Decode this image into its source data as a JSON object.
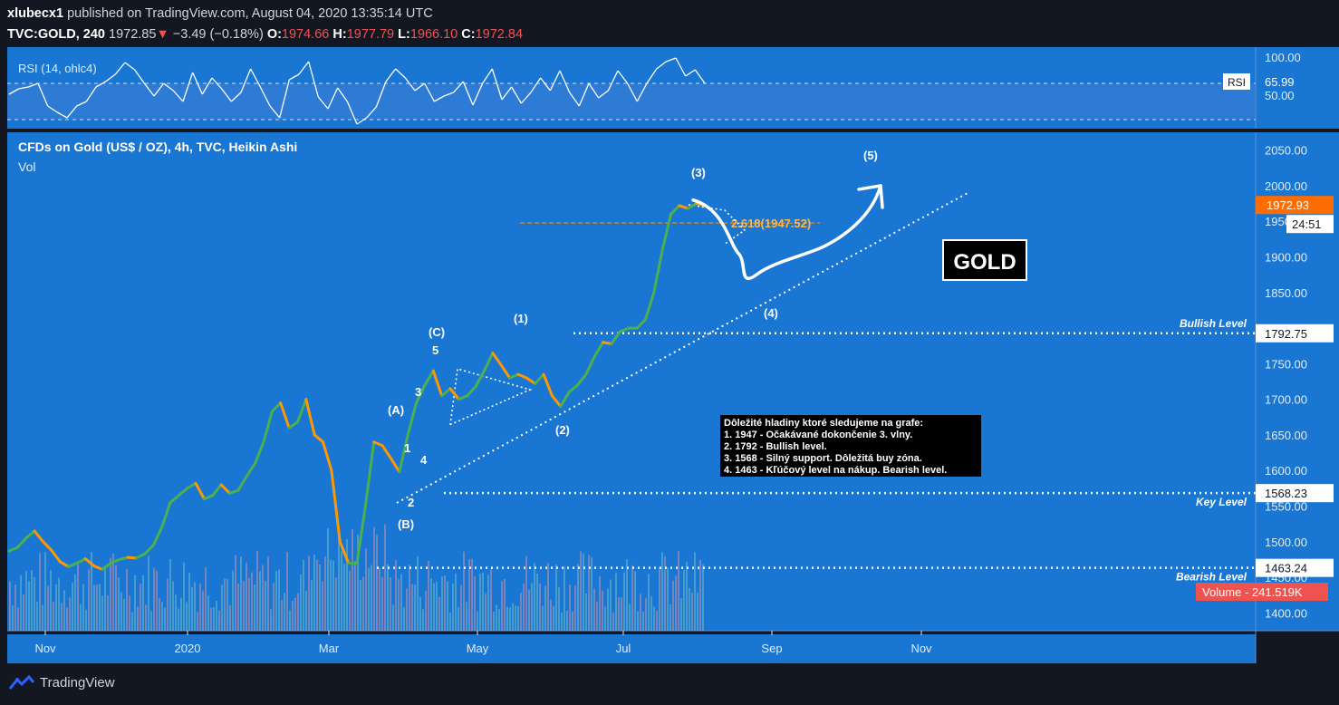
{
  "header": {
    "author": "xlubecx1",
    "published_text": "published on TradingView.com, August 04, 2020 13:35:14 UTC",
    "symbol": "TVC:GOLD, 240",
    "last": "1972.85",
    "change_arrow": "▼",
    "change": "−3.49 (−0.18%)",
    "open_label": "O:",
    "open": "1974.66",
    "high_label": "H:",
    "high": "1977.79",
    "low_label": "L:",
    "low": "1966.10",
    "close_label": "C:",
    "close": "1972.84"
  },
  "rsi_pane": {
    "title": "RSI (14, ohlc4)",
    "badge_label": "RSI",
    "badge_value": "65.99",
    "ticks": [
      "100.00",
      "50.00"
    ]
  },
  "main_pane": {
    "title": "CFDs on Gold (US$ / OZ), 4h, TVC, Heikin Ashi",
    "vol_label": "Vol",
    "price_badge": "1972.93",
    "countdown": "24:51",
    "volume_badge": "Volume - 241.519K",
    "gold_label": "GOLD"
  },
  "levels": [
    {
      "label": "Bullish Level",
      "value": "1792.75"
    },
    {
      "label": "Key Level",
      "value": "1568.23"
    },
    {
      "label": "Bearish Level",
      "value": "1463.24"
    }
  ],
  "fib_label": "2.618(1947.52)",
  "wave_labels": [
    "(A)",
    "(B)",
    "(C)",
    "1",
    "2",
    "3",
    "4",
    "5",
    "(1)",
    "(2)",
    "(3)",
    "(4)",
    "(5)"
  ],
  "note": {
    "lines": [
      "Dôležité hladiny ktoré sledujeme na grafe:",
      "1. 1947 - Očakávané dokončenie 3. vlny.",
      "2. 1792 - Bullish level.",
      "3. 1568 - Silný support. Dôležitá buy zóna.",
      "4. 1463 - Kľúčový level na nákup. Bearish level."
    ]
  },
  "footer": {
    "brand": "TradingView"
  },
  "colors": {
    "background": "#1976d2",
    "frame": "#131722",
    "up_candle": "#4caf50",
    "down_candle": "#ff9800",
    "badge_orange": "#ff6d00",
    "volume_badge": "#ef5350",
    "fib_line": "#ff9800"
  },
  "chart_data": {
    "type": "line",
    "ylim": [
      1375,
      2075
    ],
    "yticks": [
      1400,
      1450,
      1500,
      1550,
      1600,
      1650,
      1700,
      1750,
      1800,
      1850,
      1900,
      1950,
      2000,
      2050
    ],
    "x_tick_labels": [
      "Nov",
      "2020",
      "Mar",
      "May",
      "Jul",
      "Sep",
      "Nov"
    ],
    "series": [
      {
        "values": [
          1487,
          1492,
          1505,
          1515,
          1500,
          1488,
          1472,
          1465,
          1470,
          1476,
          1466,
          1461,
          1470,
          1475,
          1478,
          1477,
          1483,
          1495,
          1520,
          1555,
          1565,
          1575,
          1582,
          1560,
          1565,
          1580,
          1568,
          1572,
          1592,
          1610,
          1640,
          1683,
          1695,
          1660,
          1668,
          1700,
          1650,
          1640,
          1600,
          1500,
          1470,
          1470,
          1550,
          1640,
          1635,
          1617,
          1598,
          1650,
          1695,
          1720,
          1740,
          1705,
          1715,
          1700,
          1705,
          1718,
          1740,
          1765,
          1748,
          1730,
          1735,
          1730,
          1722,
          1735,
          1705,
          1690,
          1710,
          1720,
          1735,
          1760,
          1780,
          1778,
          1795,
          1800,
          1800,
          1812,
          1850,
          1910,
          1960,
          1972,
          1968,
          1975,
          1972
        ]
      }
    ],
    "rsi": {
      "ylim": [
        20,
        110
      ],
      "values": [
        58,
        64,
        66,
        70,
        45,
        38,
        32,
        45,
        50,
        66,
        72,
        80,
        93,
        85,
        70,
        56,
        70,
        62,
        50,
        82,
        58,
        76,
        64,
        50,
        60,
        86,
        66,
        45,
        32,
        74,
        80,
        94,
        55,
        42,
        65,
        50,
        25,
        32,
        44,
        72,
        86,
        76,
        62,
        70,
        50,
        56,
        60,
        72,
        46,
        70,
        86,
        52,
        66,
        48,
        60,
        76,
        62,
        84,
        60,
        45,
        70,
        54,
        62,
        84,
        70,
        50,
        70,
        86,
        94,
        98,
        78,
        85,
        70
      ],
      "upper_band": 70,
      "lower_band": 30
    },
    "annotation_path": [
      [
        1965,
        1980
      ],
      [
        1905,
        1905
      ],
      [
        1850,
        1875
      ],
      [
        1875,
        1885
      ],
      [
        1895,
        1915
      ],
      [
        1935,
        1947
      ],
      [
        1975,
        2000
      ]
    ]
  }
}
